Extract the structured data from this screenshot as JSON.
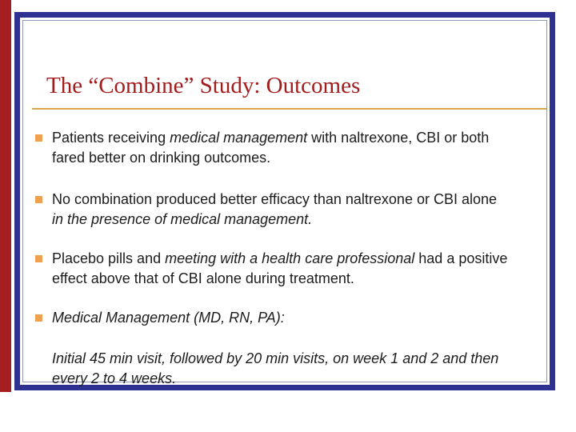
{
  "slide": {
    "title": "The “Combine” Study: Outcomes",
    "bullets": [
      {
        "lines": [
          {
            "segments": [
              {
                "text": "Patients receiving "
              },
              {
                "text": "medical management"
              },
              {
                "text": " with naltrexone, CBI or both"
              }
            ]
          },
          {
            "segments": [
              {
                "text": "fared better on drinking outcomes."
              }
            ]
          }
        ]
      },
      {
        "lines": [
          {
            "segments": [
              {
                "text": "No combination produced better efficacy than naltrexone or CBI alone"
              }
            ]
          },
          {
            "segments": [
              {
                "text": "in the presence of medical management."
              }
            ]
          }
        ]
      },
      {
        "lines": [
          {
            "segments": [
              {
                "text": "Placebo pills and "
              },
              {
                "text": "meeting with a health care professional"
              },
              {
                "text": " had a positive"
              }
            ]
          },
          {
            "segments": [
              {
                "text": "effect above that of CBI alone during treatment."
              }
            ]
          }
        ]
      },
      {
        "lines": [
          {
            "segments": [
              {
                "text": "Medical Management (MD, RN, PA):"
              }
            ]
          }
        ]
      }
    ],
    "footnote": {
      "lines": [
        {
          "segments": [
            {
              "text": "Initial 45 min visit, followed by 20 min visits, on week 1 and 2 and then"
            }
          ]
        },
        {
          "segments": [
            {
              "text": "every 2 to 4 weeks."
            }
          ]
        }
      ]
    },
    "colors": {
      "frame_navy": "#2E3192",
      "accent_bar_red": "#A51E22",
      "title_red": "#A21C1C",
      "rule_tan": "#DDA74F",
      "bullet_orange": "#F0A150",
      "body_text": "#1C1C1C",
      "inner_frame_line": "#9094B8"
    }
  }
}
